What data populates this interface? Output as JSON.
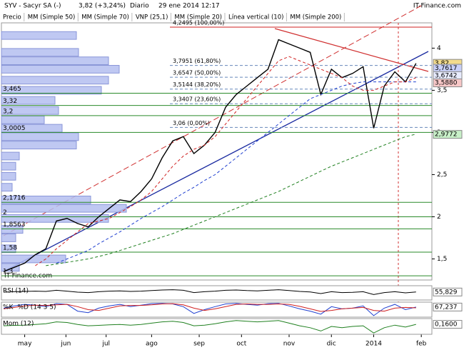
{
  "chart_data": {
    "type": "stock",
    "title": "SYV - Sacyr SA (-)",
    "quote": "3,82 (+3,24%)",
    "period": "Diario",
    "datetime": "29 ene 2014 12:17",
    "source": "IT-Finance.com",
    "watermark": "IT-Finance.com",
    "xlim": [
      -0.2,
      40.5
    ],
    "xticks": [
      {
        "value": 2,
        "label": "may"
      },
      {
        "value": 5.9,
        "label": "jun"
      },
      {
        "value": 9.7,
        "label": "jul"
      },
      {
        "value": 14,
        "label": "ago"
      },
      {
        "value": 18.5,
        "label": "sep"
      },
      {
        "value": 22.5,
        "label": "oct"
      },
      {
        "value": 27,
        "label": "nov"
      },
      {
        "value": 31,
        "label": "dic"
      },
      {
        "value": 35,
        "label": "2014"
      },
      {
        "value": 39.5,
        "label": "feb"
      }
    ],
    "ylim": [
      1.25,
      4.3
    ],
    "yticks": [
      {
        "value": 1.5,
        "label": "1,5"
      },
      2,
      {
        "value": 2.5,
        "label": "2,5"
      },
      3,
      {
        "value": 3.5,
        "label": "3,5"
      },
      4
    ],
    "series": [
      {
        "name": "Precio",
        "color": "#000000",
        "values": [
          1.35,
          1.4,
          1.45,
          1.55,
          1.62,
          1.95,
          1.98,
          1.92,
          1.88,
          2.0,
          2.1,
          2.2,
          2.18,
          2.3,
          2.45,
          2.7,
          2.9,
          2.95,
          2.75,
          2.85,
          3.0,
          3.3,
          3.45,
          3.55,
          3.65,
          3.75,
          4.1,
          4.05,
          4.0,
          3.95,
          3.45,
          3.75,
          3.65,
          3.7,
          3.78,
          3.05,
          3.55,
          3.72,
          3.6,
          3.82
        ]
      },
      {
        "name": "MM (Simple 50)",
        "color": "#555555"
      },
      {
        "name": "MM (Simple 70)",
        "color": "#2040d0",
        "dash": true,
        "values": [
          null,
          null,
          null,
          null,
          null,
          1.45,
          1.5,
          1.55,
          1.6,
          1.68,
          1.75,
          1.82,
          1.9,
          1.98,
          2.05,
          2.12,
          2.2,
          2.28,
          2.35,
          2.43,
          2.5,
          2.6,
          2.7,
          2.8,
          2.9,
          3.0,
          3.1,
          3.2,
          3.3,
          3.4,
          3.45,
          3.5,
          3.55,
          3.58,
          3.6,
          3.6,
          3.6,
          3.6,
          3.6,
          3.6
        ]
      },
      {
        "name": "VNP (25,1)",
        "color": "#b0b0e0"
      },
      {
        "name": "MM (Simple 20)",
        "color": "#d02020",
        "dash": true,
        "values": [
          null,
          null,
          null,
          1.42,
          1.5,
          1.62,
          1.72,
          1.82,
          1.92,
          1.95,
          1.98,
          2.05,
          2.12,
          2.2,
          2.3,
          2.45,
          2.6,
          2.72,
          2.8,
          2.85,
          2.95,
          3.1,
          3.25,
          3.4,
          3.55,
          3.7,
          3.85,
          3.9,
          3.85,
          3.8,
          3.75,
          3.7,
          3.65,
          3.55,
          3.5,
          3.5,
          3.55,
          3.6,
          3.6,
          3.65
        ]
      },
      {
        "name": "Línea vertical (10)",
        "color": "#e05050"
      },
      {
        "name": "MM (Simple 200)",
        "color": "#208020",
        "dash": true,
        "values": [
          null,
          null,
          null,
          null,
          1.42,
          1.44,
          1.46,
          1.48,
          1.5,
          1.53,
          1.56,
          1.6,
          1.64,
          1.68,
          1.72,
          1.76,
          1.8,
          1.85,
          1.9,
          1.95,
          2.0,
          2.05,
          2.1,
          2.15,
          2.2,
          2.25,
          2.3,
          2.36,
          2.42,
          2.48,
          2.54,
          2.6,
          2.65,
          2.7,
          2.75,
          2.8,
          2.85,
          2.9,
          2.95,
          2.98
        ]
      }
    ],
    "price_labels": [
      {
        "value": 3.82,
        "label": "3,82",
        "color": "#f3dc8c"
      },
      {
        "value": 3.7617,
        "label": "3,7617",
        "color": "#c8d0f8"
      },
      {
        "value": 3.6742,
        "label": "3,6742",
        "color": "#e8ecff"
      },
      {
        "value": 3.588,
        "label": "3,5880",
        "color": "#f8c8c8"
      },
      {
        "value": 2.9772,
        "label": "2,9772",
        "color": "#c8f0c8"
      }
    ],
    "levels": [
      {
        "value": 3.465,
        "label": "3,465"
      },
      {
        "value": 3.32,
        "label": "3,32"
      },
      {
        "value": 3.2,
        "label": "3,2"
      },
      {
        "value": 3.0005,
        "label": "3,0005"
      },
      {
        "value": 2.1716,
        "label": "2,1716"
      },
      2,
      {
        "value": 1.8563,
        "label": "1,8563"
      },
      {
        "value": 1.58,
        "label": "1,58"
      },
      {
        "value": 1.3,
        "label": "1,3"
      }
    ],
    "fibonacci": [
      {
        "value": 4.2495,
        "label": "4,2495 (100,00%)"
      },
      {
        "value": 3.7951,
        "label": "3,7951 (61,80%)"
      },
      {
        "value": 3.6547,
        "label": "3,6547 (50,00%)"
      },
      {
        "value": 3.5144,
        "label": "3,5144 (38,20%)"
      },
      {
        "value": 3.3407,
        "label": "3,3407 (23,60%)"
      },
      {
        "value": 3.06,
        "label": "3,06 (0,00%)"
      }
    ],
    "volume_profile": {
      "prices": [
        4.15,
        3.95,
        3.85,
        3.75,
        3.62,
        3.5,
        3.38,
        3.26,
        3.15,
        3.05,
        2.95,
        2.85,
        2.72,
        2.6,
        2.48,
        2.35,
        2.2,
        2.1,
        1.98,
        1.85,
        1.75,
        1.62,
        1.5,
        1.4
      ],
      "values": [
        105,
        108,
        150,
        165,
        150,
        140,
        75,
        80,
        60,
        85,
        108,
        105,
        25,
        20,
        20,
        15,
        125,
        175,
        150,
        30,
        20,
        20,
        90,
        25
      ]
    },
    "panels": [
      {
        "title": "RSI (14)",
        "ylim": [
          0,
          100
        ],
        "series": [
          {
            "color": "#000000",
            "values": [
              55,
              58,
              60,
              62,
              60,
              68,
              62,
              55,
              52,
              58,
              62,
              64,
              60,
              62,
              66,
              70,
              72,
              68,
              52,
              58,
              62,
              68,
              70,
              66,
              64,
              68,
              72,
              66,
              60,
              56,
              45,
              58,
              52,
              54,
              58,
              38,
              52,
              58,
              50,
              55.829
            ]
          }
        ],
        "last": {
          "value": 55.829,
          "label": "55,829"
        }
      },
      {
        "ylim": [
          0,
          100
        ],
        "series": [
          {
            "name": "%K",
            "color": "#2040d0",
            "values": [
              60,
              75,
              85,
              80,
              70,
              90,
              85,
              40,
              30,
              60,
              75,
              85,
              70,
              80,
              90,
              92,
              88,
              70,
              25,
              50,
              70,
              88,
              92,
              85,
              80,
              90,
              92,
              75,
              55,
              40,
              20,
              70,
              55,
              60,
              75,
              10,
              60,
              85,
              50,
              67.237
            ]
          },
          {
            "name": "%D (14 3 5)",
            "color": "#d02020",
            "values": [
              55,
              65,
              75,
              80,
              78,
              82,
              85,
              70,
              50,
              45,
              60,
              75,
              78,
              78,
              82,
              88,
              90,
              82,
              60,
              45,
              55,
              70,
              85,
              88,
              85,
              85,
              88,
              85,
              72,
              55,
              38,
              45,
              55,
              60,
              65,
              45,
              40,
              60,
              65,
              62
            ]
          }
        ],
        "last": {
          "value": 67.237,
          "label": "67,237"
        }
      },
      {
        "title": "Mom (12)",
        "ylim": [
          -0.6,
          0.6
        ],
        "series": [
          {
            "color": "#208020",
            "values": [
              0.05,
              0.08,
              0.1,
              0.15,
              0.2,
              0.35,
              0.3,
              0.15,
              0.05,
              0.08,
              0.12,
              0.15,
              0.1,
              0.15,
              0.25,
              0.35,
              0.4,
              0.3,
              0.05,
              0.1,
              0.2,
              0.35,
              0.45,
              0.4,
              0.35,
              0.4,
              0.45,
              0.25,
              0.05,
              -0.1,
              -0.35,
              0,
              -0.1,
              0,
              0.05,
              -0.5,
              -0.1,
              0.1,
              -0.05,
              0.16
            ]
          }
        ],
        "last": {
          "value": 0.16,
          "label": "0,1600"
        }
      }
    ]
  }
}
